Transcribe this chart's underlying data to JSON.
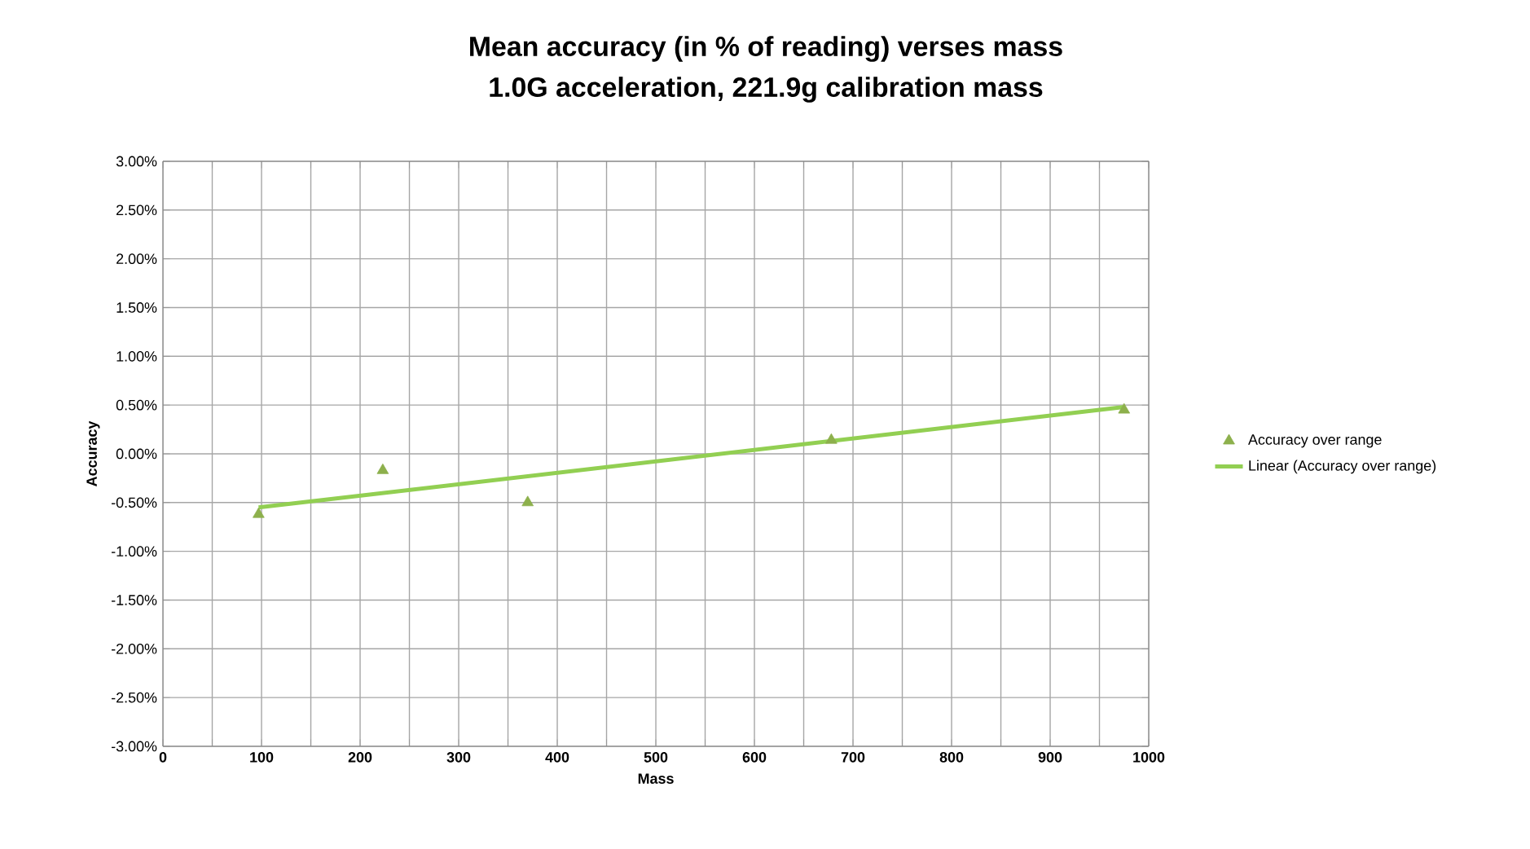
{
  "chart_data": {
    "type": "scatter",
    "title": "Mean accuracy (in % of reading) verses mass",
    "subtitle": "1.0G acceleration, 221.9g calibration mass",
    "xlabel": "Mass",
    "ylabel": "Accuracy",
    "series": [
      {
        "name": "Accuracy over range",
        "color": "#8db04c",
        "x": [
          97,
          223,
          370,
          678,
          975
        ],
        "values": [
          -0.62,
          -0.17,
          -0.5,
          0.14,
          0.45
        ]
      },
      {
        "name": "Linear (Accuracy over range)",
        "type": "line",
        "color": "#92cf52",
        "marker": "none",
        "x": [
          97,
          975
        ],
        "values": [
          -0.55,
          0.48
        ]
      }
    ],
    "xlim": [
      0,
      1000
    ],
    "xticks": [
      0,
      {
        "value": 50,
        "label": null
      },
      100,
      {
        "value": 150,
        "label": null
      },
      200,
      {
        "value": 250,
        "label": null
      },
      300,
      {
        "value": 350,
        "label": null
      },
      400,
      {
        "value": 450,
        "label": null
      },
      500,
      {
        "value": 550,
        "label": null
      },
      600,
      {
        "value": 650,
        "label": null
      },
      700,
      {
        "value": 750,
        "label": null
      },
      800,
      {
        "value": 850,
        "label": null
      },
      900,
      {
        "value": 950,
        "label": null
      },
      1000
    ],
    "ylim": [
      -3,
      3
    ],
    "yticks": [
      {
        "value": -3,
        "label": "-3.00%"
      },
      {
        "value": -2.5,
        "label": "-2.50%"
      },
      {
        "value": -2,
        "label": "-2.00%"
      },
      {
        "value": -1.5,
        "label": "-1.50%"
      },
      {
        "value": -1,
        "label": "-1.00%"
      },
      {
        "value": -0.5,
        "label": "-0.50%"
      },
      {
        "value": 0,
        "label": "0.00%"
      },
      {
        "value": 0.5,
        "label": "0.50%"
      },
      {
        "value": 1,
        "label": "1.00%"
      },
      {
        "value": 1.5,
        "label": "1.50%"
      },
      {
        "value": 2,
        "label": "2.00%"
      },
      {
        "value": 2.5,
        "label": "2.50%"
      },
      {
        "value": 3,
        "label": "3.00%"
      }
    ],
    "grid": true,
    "legend": "right",
    "marker": "triangle"
  }
}
